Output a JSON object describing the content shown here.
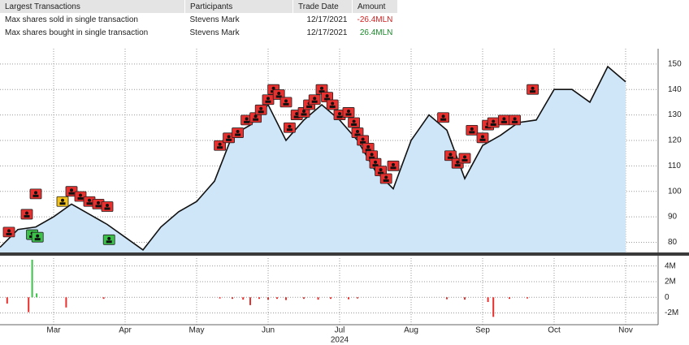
{
  "table": {
    "columns": [
      "Largest Transactions",
      "Participants",
      "Trade Date",
      "Amount"
    ],
    "rows": [
      [
        "Max shares sold in single transaction",
        "Stevens Mark",
        "12/17/2021",
        "-26.4MLN"
      ],
      [
        "Max shares bought in single transaction",
        "Stevens Mark",
        "12/17/2021",
        "26.4MLN"
      ]
    ]
  },
  "chart_data": [
    {
      "type": "area",
      "categories": [
        null,
        null,
        null,
        "Mar",
        null,
        null,
        null,
        "Apr",
        null,
        null,
        null,
        "May",
        null,
        null,
        null,
        "Jun",
        null,
        null,
        null,
        "Jul",
        null,
        null,
        null,
        "Aug",
        null,
        null,
        null,
        "Sep",
        null,
        null,
        null,
        "Oct",
        null,
        null,
        null,
        "Nov"
      ],
      "year_label": "2024",
      "series": [
        {
          "color": "#111111",
          "fill": "#cfe5f8",
          "values": [
            78,
            85,
            86,
            90,
            95,
            91,
            87,
            82,
            77,
            86,
            92,
            96,
            104,
            122,
            126,
            134,
            120,
            128,
            134,
            128,
            120,
            108,
            101,
            120,
            130,
            124,
            105,
            118,
            122,
            127,
            128,
            140,
            140,
            135,
            149,
            143
          ]
        }
      ],
      "markers": [
        {
          "color": "#e8312f",
          "x": [
            0.5,
            1.5,
            2,
            4,
            4.5,
            5,
            5.5,
            6,
            12.3,
            12.8,
            13.3,
            13.8,
            14.3,
            14.6,
            15,
            15.3,
            15.6,
            16,
            16.2,
            16.6,
            17,
            17.3,
            17.6,
            18,
            18.3,
            18.6,
            19,
            19.5,
            19.8,
            20,
            20.3,
            20.6,
            20.8,
            21,
            21.3,
            21.6,
            22,
            24.8,
            25.2,
            25.6,
            26,
            26.4,
            27,
            27.3,
            27.6,
            28.2,
            28.8,
            29.8
          ],
          "values": [
            84,
            91,
            99,
            100,
            98,
            96,
            95,
            94,
            118,
            121,
            123,
            128,
            129,
            132,
            136,
            140,
            138,
            135,
            125,
            130,
            131,
            134,
            136,
            140,
            137,
            134,
            130,
            131,
            127,
            123,
            120,
            117,
            114,
            111,
            108,
            105,
            110,
            129,
            114,
            111,
            113,
            124,
            121,
            126,
            127,
            128,
            128,
            140
          ]
        },
        {
          "color": "#3cc24a",
          "x": [
            1.8,
            2.1,
            6.1
          ],
          "values": [
            83,
            82,
            81
          ]
        },
        {
          "color": "#f2c21b",
          "x": [
            3.5
          ],
          "values": [
            96
          ]
        }
      ],
      "ylim": [
        76,
        156
      ],
      "yticks": [
        80,
        90,
        100,
        110,
        120,
        130,
        140,
        150
      ],
      "grid": true
    },
    {
      "type": "bar",
      "x": [
        0.4,
        1.6,
        1.8,
        2.05,
        3.7,
        5.8,
        12.3,
        13,
        13.6,
        14,
        14.5,
        15,
        15.5,
        16,
        17,
        17.8,
        18.5,
        19.5,
        20,
        25,
        26,
        27.3,
        27.6,
        28.5,
        29.5
      ],
      "values": [
        -800000,
        -1900000,
        4800000,
        500000,
        -1300000,
        -200000,
        -150000,
        -200000,
        -300000,
        -1000000,
        -200000,
        -300000,
        -200000,
        -350000,
        -200000,
        -300000,
        -200000,
        -250000,
        -150000,
        -250000,
        -300000,
        -600000,
        -2500000,
        -200000,
        -150000
      ],
      "positive_color": "#3cc24a",
      "negative_color": "#e8312f",
      "ylim": [
        -3500000,
        5000000
      ],
      "yticks": [
        {
          "value": -2000000,
          "label": "-2M"
        },
        0,
        {
          "value": 2000000,
          "label": "2M"
        },
        {
          "value": 4000000,
          "label": "4M"
        }
      ],
      "grid": true
    }
  ]
}
